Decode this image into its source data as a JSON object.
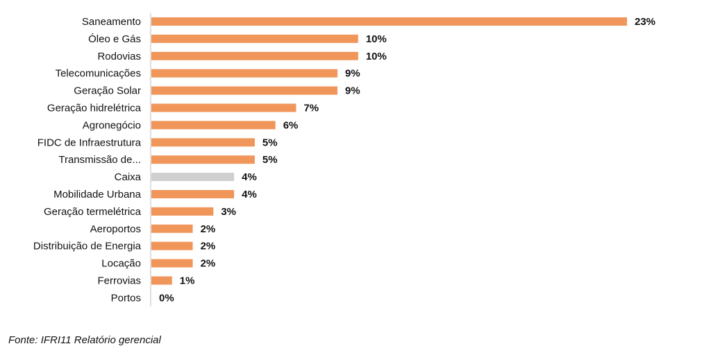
{
  "chart_data": {
    "type": "bar",
    "orientation": "horizontal",
    "categories": [
      "Saneamento",
      "Óleo e Gás",
      "Rodovias",
      "Telecomunicações",
      "Geração Solar",
      "Geração hidrelétrica",
      "Agronegócio",
      "FIDC de Infraestrutura",
      "Transmissão de...",
      "Caixa",
      "Mobilidade Urbana",
      "Geração termelétrica",
      "Aeroportos",
      "Distribuição de Energia",
      "Locação",
      "Ferrovias",
      "Portos"
    ],
    "values": [
      23,
      10,
      10,
      9,
      9,
      7,
      6,
      5,
      5,
      4,
      4,
      3,
      2,
      2,
      2,
      1,
      0
    ],
    "value_labels": [
      "23%",
      "10%",
      "10%",
      "9%",
      "9%",
      "7%",
      "6%",
      "5%",
      "5%",
      "4%",
      "4%",
      "3%",
      "2%",
      "2%",
      "2%",
      "1%",
      "0%"
    ],
    "bar_colors": [
      "#F0965A",
      "#F0965A",
      "#F0965A",
      "#F0965A",
      "#F0965A",
      "#F0965A",
      "#F0965A",
      "#F0965A",
      "#F0965A",
      "#CFCFCF",
      "#F0965A",
      "#F0965A",
      "#F0965A",
      "#F0965A",
      "#F0965A",
      "#F0965A",
      "#F0965A"
    ],
    "xlim": [
      0,
      23
    ],
    "axis_color": "#BFBFBF",
    "grid": false,
    "legend": "none"
  },
  "source": "Fonte: IFRI11 Relatório gerencial"
}
